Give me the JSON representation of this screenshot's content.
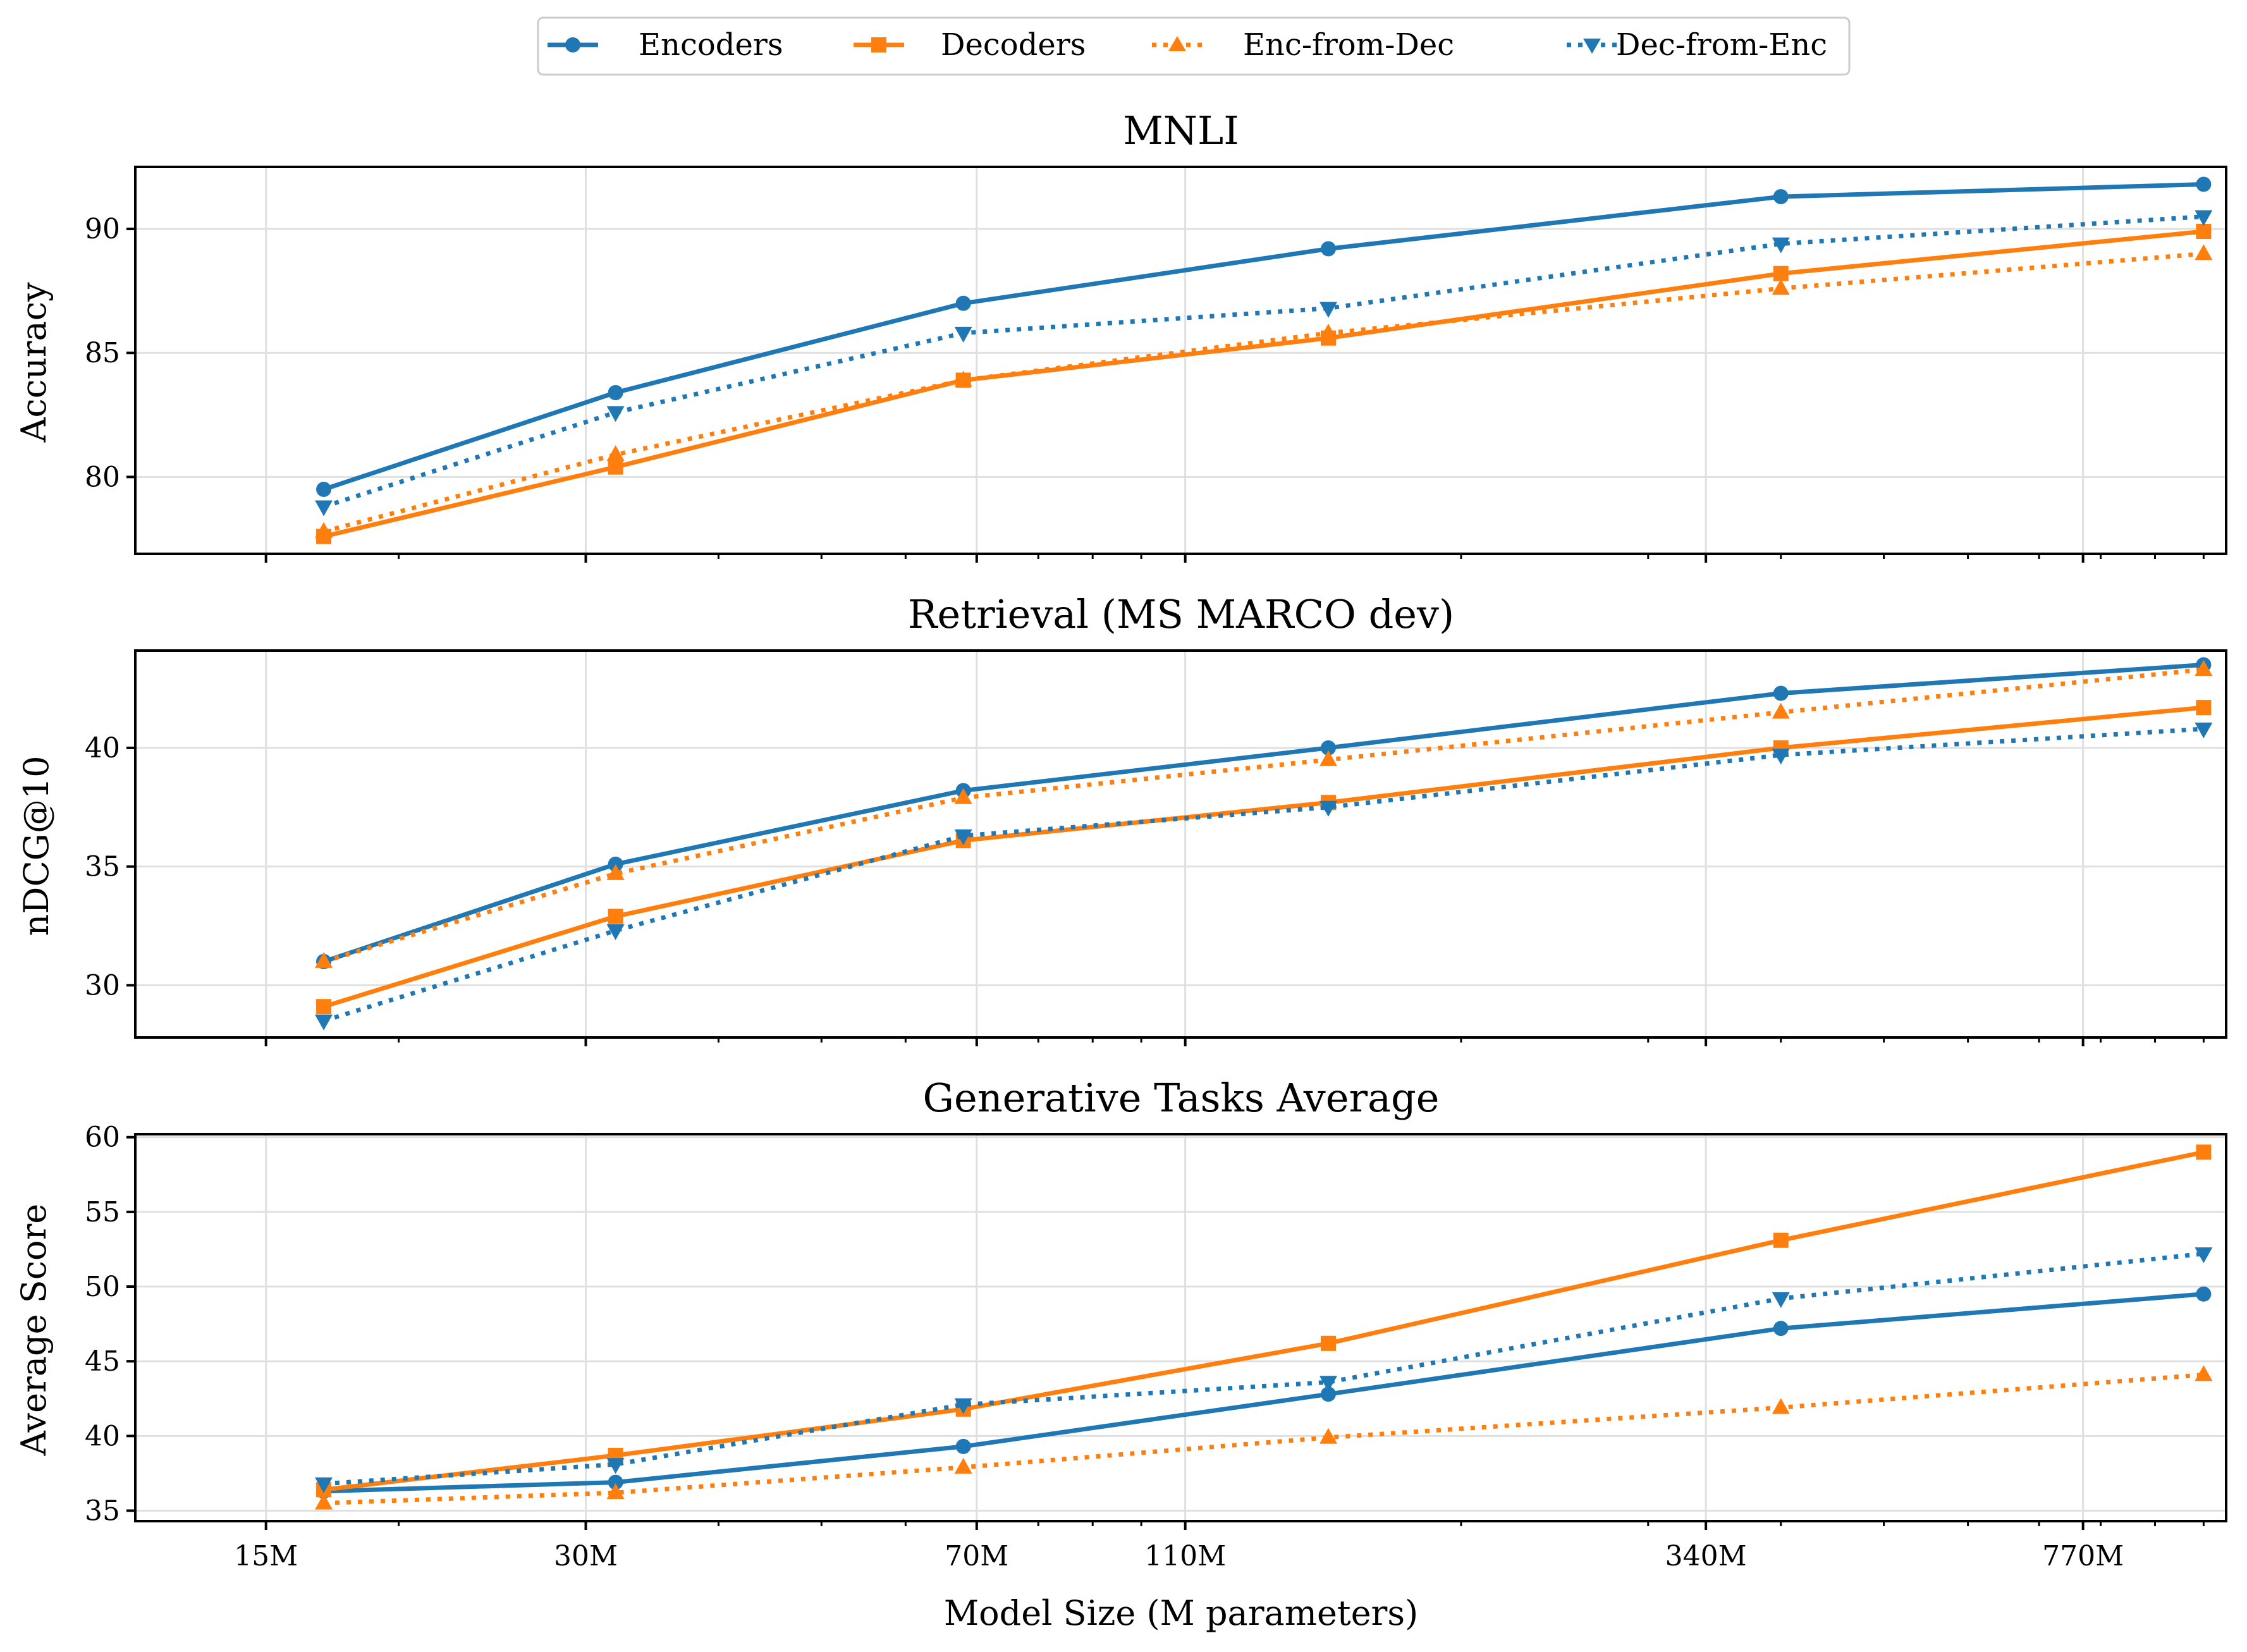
{
  "chart_data": {
    "type": "line",
    "xscale": "log",
    "xlabel": "Model Size (M parameters)",
    "xticks": [
      15,
      30,
      70,
      110,
      340,
      770
    ],
    "xticklabels": [
      "15M",
      "30M",
      "70M",
      "110M",
      "340M",
      "770M"
    ],
    "xlim": [
      11.3,
      1050
    ],
    "x": [
      17,
      32,
      68,
      150,
      400,
      1000
    ],
    "legend": {
      "position": "top-center",
      "entries": [
        "Encoders",
        "Decoders",
        "Enc-from-Dec",
        "Dec-from-Enc"
      ]
    },
    "series_styles": [
      {
        "name": "Encoders",
        "color": "#1f77b4",
        "marker": "circle",
        "dash": "solid"
      },
      {
        "name": "Decoders",
        "color": "#ff7f0e",
        "marker": "square",
        "dash": "solid"
      },
      {
        "name": "Enc-from-Dec",
        "color": "#ff7f0e",
        "marker": "triangle-up",
        "dash": "dotted"
      },
      {
        "name": "Dec-from-Enc",
        "color": "#1f77b4",
        "marker": "triangle-down",
        "dash": "dotted"
      }
    ],
    "panels": [
      {
        "title": "MNLI",
        "ylabel": "Accuracy",
        "ylim": [
          76.9,
          92.5
        ],
        "yticks": [
          80,
          85,
          90
        ],
        "series": [
          {
            "name": "Encoders",
            "values": [
              79.5,
              83.4,
              87.0,
              89.2,
              91.3,
              91.8
            ]
          },
          {
            "name": "Decoders",
            "values": [
              77.6,
              80.4,
              83.9,
              85.6,
              88.2,
              89.9
            ]
          },
          {
            "name": "Enc-from-Dec",
            "values": [
              77.8,
              80.9,
              83.9,
              85.8,
              87.6,
              89.0
            ]
          },
          {
            "name": "Dec-from-Enc",
            "values": [
              78.8,
              82.6,
              85.8,
              86.8,
              89.4,
              90.5
            ]
          }
        ]
      },
      {
        "title": "Retrieval (MS MARCO dev)",
        "ylabel": "nDCG@10",
        "ylim": [
          27.8,
          44.1
        ],
        "yticks": [
          30,
          35,
          40
        ],
        "series": [
          {
            "name": "Encoders",
            "values": [
              31.0,
              35.1,
              38.2,
              40.0,
              42.3,
              43.5
            ]
          },
          {
            "name": "Decoders",
            "values": [
              29.1,
              32.9,
              36.1,
              37.7,
              40.0,
              41.7
            ]
          },
          {
            "name": "Enc-from-Dec",
            "values": [
              31.0,
              34.7,
              37.9,
              39.5,
              41.5,
              43.3
            ]
          },
          {
            "name": "Dec-from-Enc",
            "values": [
              28.5,
              32.3,
              36.3,
              37.5,
              39.7,
              40.8
            ]
          }
        ]
      },
      {
        "title": "Generative Tasks Average",
        "ylabel": "Average Score",
        "ylim": [
          34.3,
          60.2
        ],
        "yticks": [
          35,
          40,
          45,
          50,
          55,
          60
        ],
        "series": [
          {
            "name": "Encoders",
            "values": [
              36.3,
              36.9,
              39.3,
              42.8,
              47.2,
              49.5
            ]
          },
          {
            "name": "Decoders",
            "values": [
              36.4,
              38.7,
              41.8,
              46.2,
              53.1,
              59.0
            ]
          },
          {
            "name": "Enc-from-Dec",
            "values": [
              35.5,
              36.2,
              37.9,
              39.9,
              41.9,
              44.1
            ]
          },
          {
            "name": "Dec-from-Enc",
            "values": [
              36.8,
              38.1,
              42.1,
              43.6,
              49.2,
              52.2
            ]
          }
        ]
      }
    ]
  }
}
